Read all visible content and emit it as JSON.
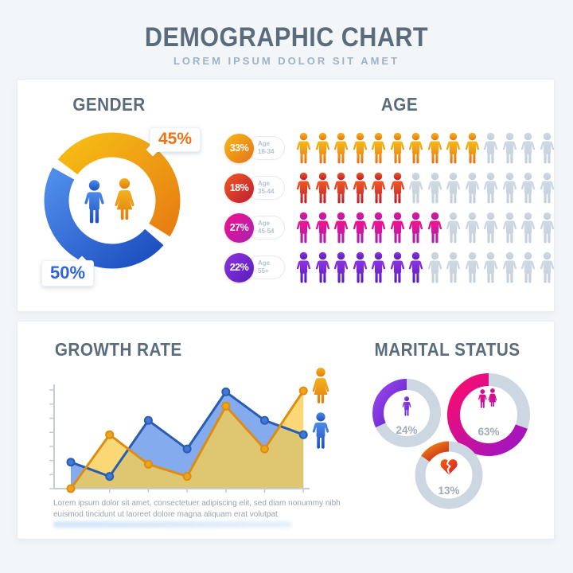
{
  "header": {
    "title": "DEMOGRAPHIC CHART",
    "subtitle": "LOREM IPSUM DOLOR SIT AMET"
  },
  "colors": {
    "background": "#f3f6f8",
    "card": "#ffffff",
    "heading": "#5a6c7c",
    "subtitle": "#9fb2c4",
    "gray_icon": "#cdd8e1",
    "gender_orange_top": "#f5bc14",
    "gender_orange_bottom": "#e87f13",
    "gender_blue_top": "#4f8cea",
    "gender_blue_bottom": "#1d4fc0",
    "female_label": "#ee7317",
    "male_label": "#2d65d9",
    "age_row1_top": "#f7b916",
    "age_row1_bottom": "#e4731a",
    "age_row2_top": "#f25722",
    "age_row2_bottom": "#b91f31",
    "age_row3_top": "#f2128e",
    "age_row3_bottom": "#a621b2",
    "age_row4_top": "#8d33e3",
    "age_row4_bottom": "#571cba",
    "growth_blue_line": "#2b5cb4",
    "growth_blue_dot": "#4079d8",
    "growth_orange_line": "#dd8d12",
    "growth_orange_dot": "#f2a418",
    "growth_blue_fill": "rgba(100,150,232,0.8)",
    "growth_orange_fill": "rgba(248,205,78,0.78)",
    "axis": "#c3cdd6",
    "ring_gray": "#cdd7e2",
    "pct_text": "#a0abb8",
    "single_top": "#9747ec",
    "single_bottom": "#5a1cc2",
    "married_top": "#fb0c6e",
    "married_bottom": "#9c15c5",
    "divorced_top": "#f07c12",
    "divorced_bottom": "#c21f1f",
    "heart_top": "#f2600f",
    "heart_bottom": "#d41f2c"
  },
  "chart_data": [
    {
      "id": "gender",
      "type": "pie",
      "title": "GENDER",
      "slices": [
        {
          "label": "female",
          "percent": "45%",
          "value": 45,
          "color": "orange",
          "arc_start_deg": -53,
          "arc_sweep_deg": 175
        },
        {
          "label": "male",
          "percent": "50%",
          "value": 50,
          "color": "blue",
          "arc_start_deg": 131,
          "arc_sweep_deg": 168
        }
      ],
      "note": "donut with man and woman icons in center"
    },
    {
      "id": "age",
      "type": "pictogram",
      "title": "AGE",
      "icons_per_row": 14,
      "rows": [
        {
          "percent": "33%",
          "value": 33,
          "label": "Age 18-34",
          "filled": 10
        },
        {
          "percent": "18%",
          "value": 18,
          "label": "Age 35-44",
          "filled": 6
        },
        {
          "percent": "27%",
          "value": 27,
          "label": "Age 45-54",
          "filled": 8
        },
        {
          "percent": "22%",
          "value": 22,
          "label": "Age 55+",
          "filled": 7
        }
      ]
    },
    {
      "id": "growth",
      "type": "area",
      "title": "GROWTH RATE",
      "x": [
        1,
        2,
        3,
        4,
        5,
        6,
        7
      ],
      "series": [
        {
          "name": "male",
          "values": [
            26,
            12,
            67,
            39,
            95,
            67,
            53
          ]
        },
        {
          "name": "female",
          "values": [
            0,
            53,
            24,
            12,
            81,
            39,
            96
          ]
        }
      ],
      "ylim": [
        0,
        100
      ],
      "legend": [
        "woman-icon",
        "man-icon"
      ],
      "caption": "Lorem ipsum dolor sit amet, consectetuer adipiscing elit, sed diam nonummy nibh euismod tincidunt ut laoreet dolore magna aliquam erat volutpat"
    },
    {
      "id": "marital",
      "type": "donut-set",
      "title": "MARITAL STATUS",
      "items": [
        {
          "label": "single",
          "percent": "24%",
          "value": 24,
          "sweep_deg": 115
        },
        {
          "label": "married",
          "percent": "63%",
          "value": 63,
          "sweep_deg": 250
        },
        {
          "label": "divorced",
          "percent": "13%",
          "value": 13,
          "sweep_deg": 55
        }
      ]
    }
  ]
}
